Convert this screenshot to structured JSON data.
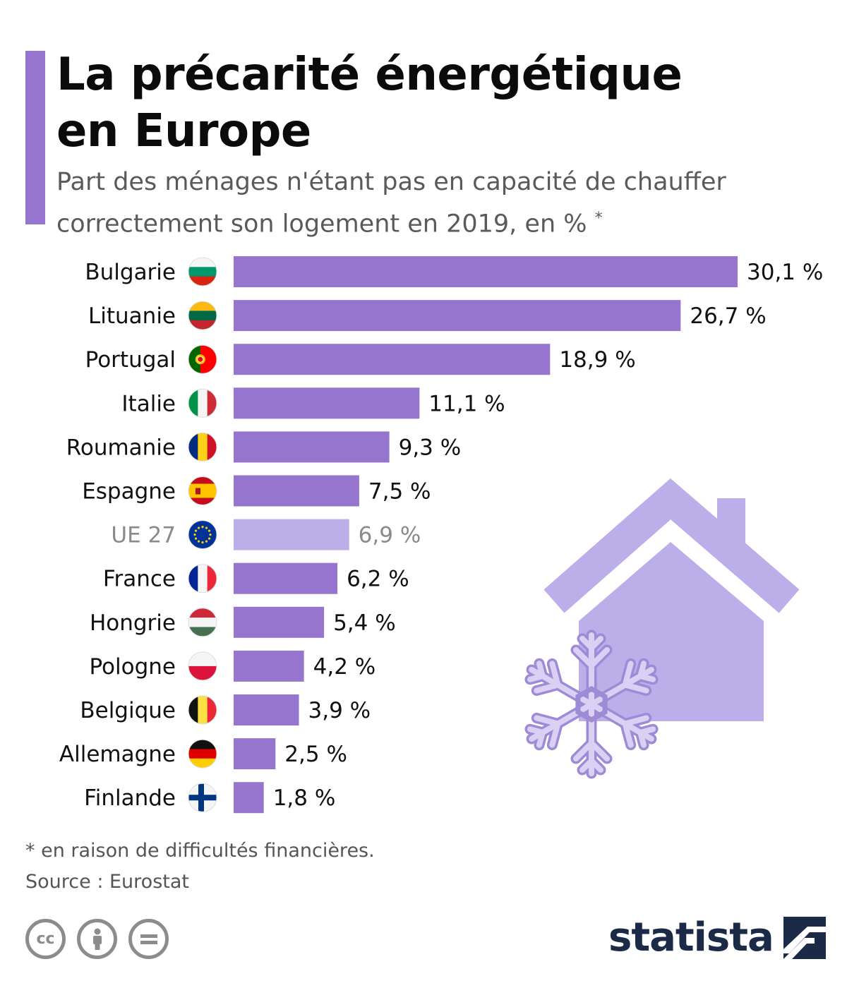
{
  "title_line1": "La précarité énergétique",
  "title_line2": "en Europe",
  "subtitle_line1": "Part des ménages n'étant pas en capacité de chauffer",
  "subtitle_line2": "correctement son logement en 2019, en %",
  "subtitle_mark": "*",
  "footnote": "* en raison de difficultés financières.",
  "source": "Source : Eurostat",
  "brand": "statista",
  "colors": {
    "accent": "#9575cd",
    "bar": "#9575cd",
    "bar_highlight": "#bcaee9",
    "illustration": "#bcaee9",
    "brand": "#1b2a47"
  },
  "icons": [
    "creative-commons-icon",
    "attribution-icon",
    "no-derivatives-icon",
    "statista-logo-icon",
    "house-icon",
    "snowflake-icon"
  ],
  "chart_data": {
    "type": "bar",
    "orientation": "horizontal",
    "categories": [
      "Bulgarie",
      "Lituanie",
      "Portugal",
      "Italie",
      "Roumanie",
      "Espagne",
      "UE 27",
      "France",
      "Hongrie",
      "Pologne",
      "Belgique",
      "Allemagne",
      "Finlande"
    ],
    "values": [
      30.1,
      26.7,
      18.9,
      11.1,
      9.3,
      7.5,
      6.9,
      6.2,
      5.4,
      4.2,
      3.9,
      2.5,
      1.8
    ],
    "value_labels": [
      "30,1 %",
      "26,7 %",
      "18,9 %",
      "11,1 %",
      "9,3 %",
      "7,5 %",
      "6,9 %",
      "6,2 %",
      "5,4 %",
      "4,2 %",
      "3,9 %",
      "2,5 %",
      "1,8 %"
    ],
    "highlight_category": "UE 27",
    "flags": [
      "bulgaria-flag",
      "lithuania-flag",
      "portugal-flag",
      "italy-flag",
      "romania-flag",
      "spain-flag",
      "eu-flag",
      "france-flag",
      "hungary-flag",
      "poland-flag",
      "belgium-flag",
      "germany-flag",
      "finland-flag"
    ],
    "xlim": [
      0,
      30.1
    ],
    "grid": false,
    "legend": "none"
  }
}
